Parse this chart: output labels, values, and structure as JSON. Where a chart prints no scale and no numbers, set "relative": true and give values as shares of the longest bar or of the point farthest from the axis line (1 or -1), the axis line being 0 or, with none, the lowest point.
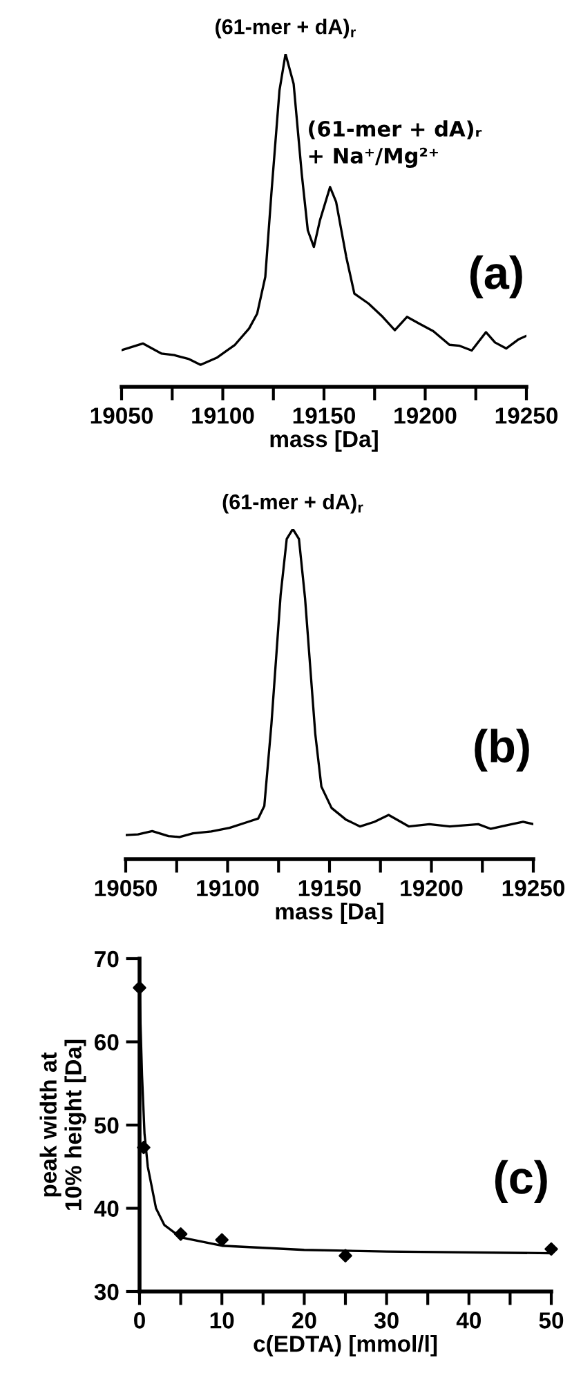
{
  "chart_data": [
    {
      "type": "line",
      "relative": true,
      "xlabel": "mass [Da]",
      "xlim": [
        19050,
        19250
      ],
      "tick_labels": "x",
      "xticks": [
        19050,
        {
          "value": 19075,
          "label": null
        },
        19100,
        {
          "value": 19125,
          "label": null
        },
        19150,
        {
          "value": 19175,
          "label": null
        },
        19200,
        {
          "value": 19225,
          "label": null
        },
        19250
      ],
      "annotations": [
        {
          "text": "(61-mer + dA)$_{r}$",
          "x": 19131,
          "y": 1.0
        },
        {
          "text": "(61-mer + dA)ᵣ\n+ Na⁺/Mg²⁺",
          "x": 19153,
          "y": 0.6
        },
        "(a)"
      ],
      "series": [
        {
          "color": "#000000",
          "x": [
            19050,
            19060.5,
            19069.6,
            19076,
            19083,
            19089,
            19097,
            19106,
            19113,
            19117,
            19121,
            19124,
            19128,
            19131,
            19135,
            19139,
            19142,
            19145,
            19148,
            19153,
            19156,
            19161,
            19165,
            19172,
            19179,
            19185,
            19191,
            19197,
            19204,
            19212,
            19217,
            19223,
            19230,
            19234.5,
            19240,
            19246,
            19250
          ],
          "values": [
            0.11,
            0.13,
            0.1,
            0.095,
            0.084,
            0.066,
            0.087,
            0.126,
            0.175,
            0.22,
            0.33,
            0.58,
            0.89,
            1.0,
            0.91,
            0.64,
            0.47,
            0.42,
            0.5,
            0.6,
            0.555,
            0.39,
            0.28,
            0.25,
            0.21,
            0.17,
            0.21,
            0.19,
            0.167,
            0.126,
            0.123,
            0.109,
            0.164,
            0.133,
            0.115,
            0.142,
            0.153
          ]
        }
      ]
    },
    {
      "type": "line",
      "relative": true,
      "xlabel": "mass [Da]",
      "xlim": [
        19050,
        19250
      ],
      "tick_labels": "x",
      "xticks": [
        19050,
        {
          "value": 19075,
          "label": null
        },
        19100,
        {
          "value": 19125,
          "label": null
        },
        19150,
        {
          "value": 19175,
          "label": null
        },
        19200,
        {
          "value": 19225,
          "label": null
        },
        19250
      ],
      "annotations": [
        {
          "text": "(61-mer + dA)$_{r}$",
          "x": 19132,
          "y": 1.0
        },
        "(b)"
      ],
      "series": [
        {
          "color": "#000000",
          "x": [
            19050,
            19056,
            19063,
            19071,
            19076.5,
            19083,
            19092,
            19101,
            19110,
            19115,
            19118,
            19121.5,
            19126,
            19129,
            19132,
            19135,
            19138,
            19143,
            19146,
            19151,
            19158,
            19165,
            19172,
            19179,
            19185,
            19189,
            19199,
            19209,
            19223,
            19229,
            19237,
            19245,
            19250
          ],
          "values": [
            0.073,
            0.075,
            0.085,
            0.07,
            0.067,
            0.078,
            0.084,
            0.095,
            0.113,
            0.123,
            0.161,
            0.41,
            0.8,
            0.97,
            1.0,
            0.97,
            0.79,
            0.38,
            0.22,
            0.155,
            0.12,
            0.099,
            0.113,
            0.134,
            0.113,
            0.099,
            0.106,
            0.099,
            0.106,
            0.092,
            0.103,
            0.113,
            0.106
          ]
        }
      ]
    },
    {
      "type": "scatter",
      "xlabel": "c(EDTA) [mmol/l]",
      "ylabel": "peak width at\n10% height [Da]",
      "marker": "diamond",
      "xlim": [
        0,
        50
      ],
      "ylim": [
        30,
        70
      ],
      "xticks": [
        0,
        {
          "value": 5,
          "label": null
        },
        10,
        {
          "value": 15,
          "label": null
        },
        20,
        {
          "value": 25,
          "label": null
        },
        30,
        {
          "value": 35,
          "label": null
        },
        40,
        {
          "value": 45,
          "label": null
        },
        50
      ],
      "yticks": [
        30,
        40,
        50,
        60,
        70
      ],
      "annotations": [
        "(c)"
      ],
      "series": [
        {
          "type": "scatter",
          "color": "#000000",
          "x": [
            0,
            0.5,
            5,
            10,
            25,
            50
          ],
          "values": [
            66.5,
            47.3,
            36.9,
            36.2,
            34.3,
            35.1
          ]
        },
        {
          "type": "line",
          "marker": "none",
          "color": "#000000",
          "x": [
            0,
            0.3,
            0.6,
            1,
            2,
            3,
            5,
            10,
            20,
            30,
            50
          ],
          "values": [
            66,
            56,
            49,
            45,
            40,
            38,
            36.5,
            35.5,
            35,
            34.8,
            34.6
          ]
        }
      ]
    }
  ]
}
